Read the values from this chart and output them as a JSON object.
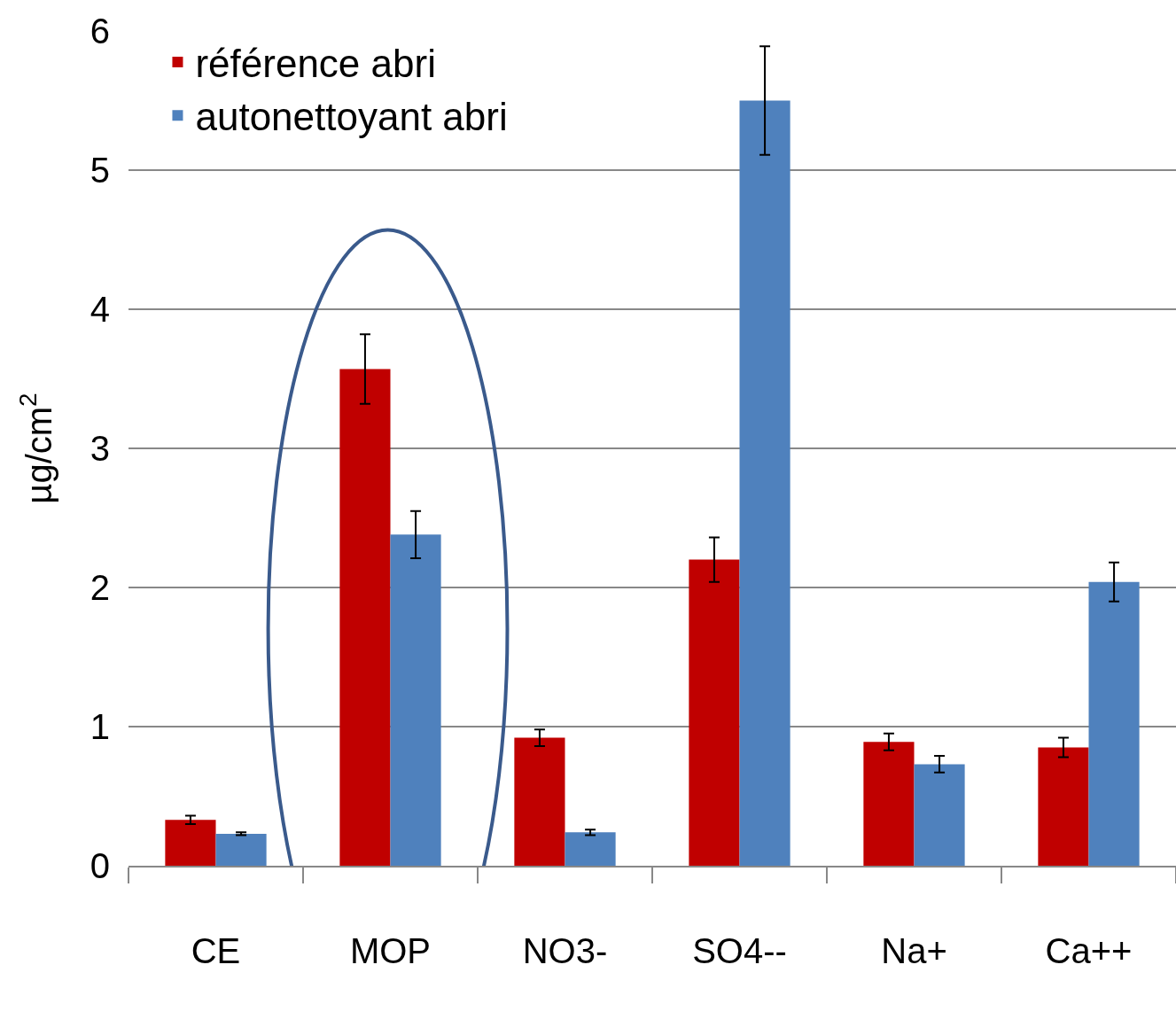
{
  "chart_data": {
    "type": "bar",
    "ylabel": "µg/cm$^{2}$",
    "categories": [
      "CE",
      "MOP",
      "NO3-",
      "SO4--",
      "Na+",
      "Ca++"
    ],
    "series": [
      {
        "name": "référence abri",
        "color": "#c00000",
        "values": [
          0.33,
          3.57,
          0.92,
          2.2,
          0.89,
          0.85
        ],
        "errors": [
          0.03,
          0.25,
          0.06,
          0.16,
          0.06,
          0.07
        ]
      },
      {
        "name": "autonettoyant abri",
        "color": "#4f81bd",
        "values": [
          0.23,
          2.38,
          0.24,
          5.5,
          0.73,
          2.04
        ],
        "errors": [
          0.01,
          0.17,
          0.02,
          0.39,
          0.06,
          0.14
        ]
      }
    ],
    "ylim": [
      0,
      6
    ],
    "yticks": [
      0,
      1,
      2,
      3,
      4,
      5,
      6
    ],
    "grid": "y",
    "legend": "top left"
  }
}
